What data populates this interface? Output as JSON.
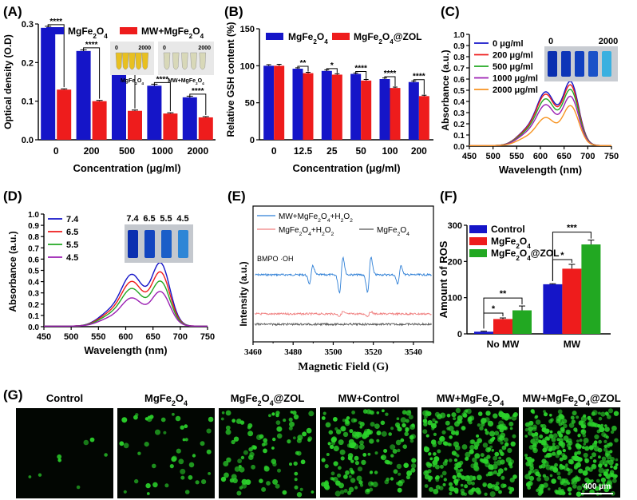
{
  "colors": {
    "blue": "#1515c8",
    "red": "#ee1c1c",
    "green": "#22a822",
    "orange": "#f79320",
    "purple": "#9b1fb3",
    "esr_blue": "#2e7fd6",
    "esr_red": "#f08080",
    "esr_gray": "#555555",
    "cell_green": "#2bd22b"
  },
  "chart_data": [
    {
      "panel": "(A)",
      "type": "bar",
      "categories": [
        "0",
        "200",
        "500",
        "1000",
        "2000"
      ],
      "series": [
        {
          "name": "MgFe2O4",
          "values": [
            0.29,
            0.23,
            0.185,
            0.14,
            0.11
          ],
          "errors": [
            0.004,
            0.003,
            0.004,
            0.004,
            0.003
          ]
        },
        {
          "name": "MW+MgFe2O4",
          "values": [
            0.13,
            0.1,
            0.075,
            0.068,
            0.058
          ],
          "errors": [
            0.002,
            0.002,
            0.002,
            0.002,
            0.002
          ]
        }
      ],
      "significance": [
        "****",
        "****",
        "****",
        "****",
        "****"
      ],
      "xlabel": "Concentration (μg/ml)",
      "ylabel": "Optical density (O.D)",
      "ylim": [
        0,
        0.3
      ],
      "yticks": [
        "0.0",
        "0.1",
        "0.2",
        "0.3"
      ],
      "inset": {
        "scale_min": "0",
        "scale_max": "2000",
        "labels": [
          "MgFe2O4",
          "MW+MgFe2O4"
        ]
      }
    },
    {
      "panel": "(B)",
      "type": "bar",
      "categories": [
        "0",
        "12.5",
        "25",
        "50",
        "100",
        "200"
      ],
      "series": [
        {
          "name": "MgFe2O4",
          "values": [
            100,
            96,
            93,
            89,
            82,
            78
          ],
          "errors": [
            1.5,
            1.2,
            1.5,
            1.2,
            1.5,
            1.5
          ]
        },
        {
          "name": "MgFe2O4@ZOL",
          "values": [
            100,
            90,
            88,
            80,
            70,
            59
          ],
          "errors": [
            2,
            1.2,
            1.2,
            1.5,
            1.2,
            1.2
          ]
        }
      ],
      "significance": [
        "",
        "**",
        "*",
        "****",
        "****",
        "****"
      ],
      "xlabel": "Concentration (μg/ml)",
      "ylabel": "Relative GSH content (%)",
      "ylim": [
        0,
        150
      ],
      "yticks": [
        "0",
        "50",
        "100",
        "150"
      ]
    },
    {
      "panel": "(C)",
      "type": "line",
      "xlabel": "Wavelength (nm)",
      "ylabel": "Absorbance (a.u.)",
      "xlim": [
        450,
        750
      ],
      "ylim": [
        0,
        1.0
      ],
      "xticks": [
        "450",
        "500",
        "550",
        "600",
        "650",
        "700",
        "750"
      ],
      "yticks": [
        "0.0",
        "0.1",
        "0.2",
        "0.3",
        "0.4",
        "0.5",
        "0.6",
        "0.7",
        "0.8",
        "0.9",
        "1.0"
      ],
      "series": [
        {
          "name": "0 μg/ml",
          "peak612": 0.46,
          "peak664": 0.56
        },
        {
          "name": "200 μg/ml",
          "peak612": 0.44,
          "peak664": 0.53
        },
        {
          "name": "500 μg/ml",
          "peak612": 0.4,
          "peak664": 0.49
        },
        {
          "name": "1000 μg/ml",
          "peak612": 0.35,
          "peak664": 0.43
        },
        {
          "name": "2000 μg/ml",
          "peak612": 0.24,
          "peak664": 0.35
        }
      ],
      "inset": {
        "scale_min": "0",
        "scale_max": "2000"
      }
    },
    {
      "panel": "(D)",
      "type": "line",
      "xlabel": "Wavelength (nm)",
      "ylabel": "Absorbance (a.u.)",
      "xlim": [
        450,
        750
      ],
      "ylim": [
        0,
        1.0
      ],
      "xticks": [
        "450",
        "500",
        "550",
        "600",
        "650",
        "700",
        "750"
      ],
      "yticks": [
        "0.0",
        "0.1",
        "0.2",
        "0.3",
        "0.4",
        "0.5",
        "0.6",
        "0.7",
        "0.8",
        "0.9",
        "1.0"
      ],
      "series": [
        {
          "name": "7.4",
          "peak612": 0.44,
          "peak664": 0.55
        },
        {
          "name": "6.5",
          "peak612": 0.38,
          "peak664": 0.47
        },
        {
          "name": "5.5",
          "peak612": 0.32,
          "peak664": 0.39
        },
        {
          "name": "4.5",
          "peak612": 0.24,
          "peak664": 0.3
        }
      ],
      "inset": {
        "labels": [
          "7.4",
          "6.5",
          "5.5",
          "4.5"
        ]
      }
    },
    {
      "panel": "(E)",
      "type": "line",
      "xlabel": "Magnetic Field (G)",
      "ylabel": "Intensity (a.u.)",
      "xlim": [
        3460,
        3550
      ],
      "xticks": [
        "3460",
        "3480",
        "3500",
        "3520",
        "3540"
      ],
      "series": [
        {
          "name": "MW+MgFe2O4+H2O2",
          "peaks": [
            3489,
            3504,
            3518,
            3533
          ],
          "amplitudes": [
            1,
            2,
            2,
            1
          ]
        },
        {
          "name": "MgFe2O4+H2O2",
          "peaks": [
            3504,
            3518
          ],
          "amplitudes": [
            0.25,
            0.25
          ]
        },
        {
          "name": "MgFe2O4",
          "peaks": [],
          "amplitudes": []
        }
      ],
      "annotation": "BMPO ·OH"
    },
    {
      "panel": "(F)",
      "type": "bar",
      "categories": [
        "No MW",
        "MW"
      ],
      "series": [
        {
          "name": "Control",
          "values": [
            6,
            137
          ],
          "errors": [
            1.5,
            1.5
          ]
        },
        {
          "name": "MgFe2O4",
          "values": [
            41,
            180
          ],
          "errors": [
            3,
            12
          ]
        },
        {
          "name": "MgFe2O4@ZOL",
          "values": [
            65,
            247
          ],
          "errors": [
            12,
            12
          ]
        }
      ],
      "significance": [
        {
          "label": "*",
          "group": "No MW",
          "pair": "Control-MgFe2O4"
        },
        {
          "label": "**",
          "group": "No MW",
          "pair": "Control-MgFe2O4@ZOL"
        },
        {
          "label": "*",
          "group": "MW",
          "pair": "Control-MgFe2O4"
        },
        {
          "label": "***",
          "group": "MW",
          "pair": "Control-MgFe2O4@ZOL"
        }
      ],
      "ylabel": "Amount of ROS",
      "ylim": [
        0,
        300
      ],
      "yticks": [
        "0",
        "100",
        "200",
        "300"
      ]
    }
  ],
  "panel_g": {
    "label": "(G)",
    "columns": [
      "Control",
      "MgFe2O4",
      "MgFe2O4@ZOL",
      "MW+Control",
      "MW+MgFe2O4",
      "MW+MgFe2O4@ZOL"
    ],
    "cell_counts": [
      8,
      45,
      90,
      170,
      260,
      340
    ],
    "scale_bar": "400 μm"
  },
  "labels": {
    "A": "(A)",
    "B": "(B)",
    "C": "(C)",
    "D": "(D)",
    "E": "(E)",
    "F": "(F)"
  }
}
